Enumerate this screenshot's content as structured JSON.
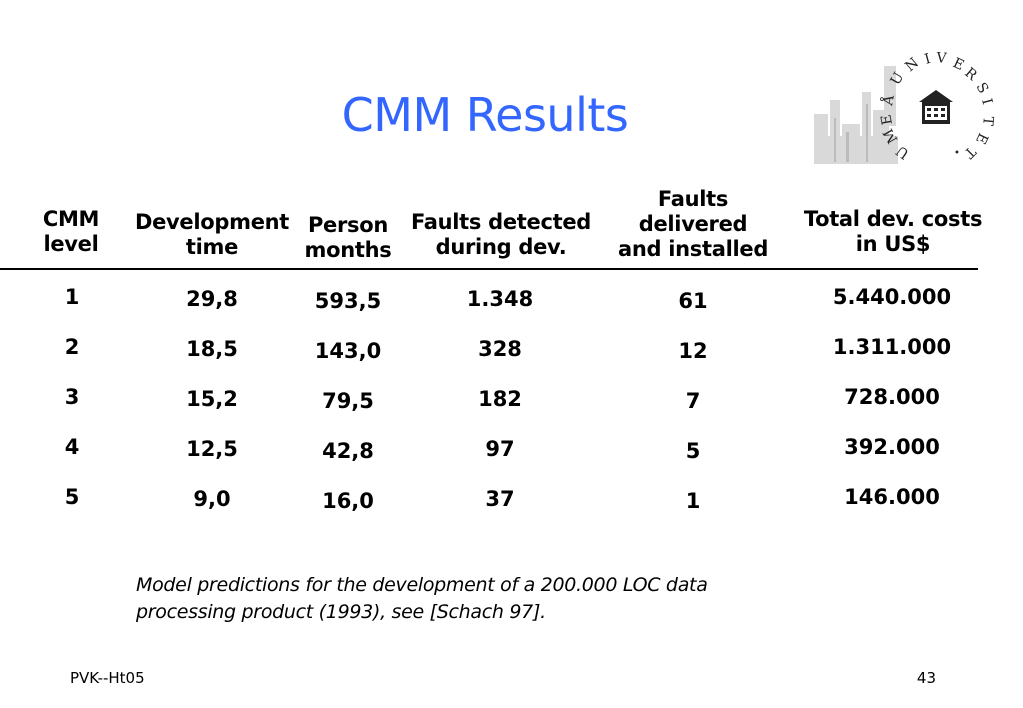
{
  "slide": {
    "title": "CMM Results"
  },
  "logo": {
    "name": "umea-universitet-logo",
    "text": "UMEÅ UNIVERSITET"
  },
  "table": {
    "headers": [
      {
        "lines": [
          "CMM",
          "level"
        ]
      },
      {
        "lines": [
          "Development",
          "time"
        ]
      },
      {
        "lines": [
          "Person",
          "months"
        ]
      },
      {
        "lines": [
          "Faults detected",
          "during dev."
        ]
      },
      {
        "lines": [
          "Faults",
          "delivered",
          "and installed"
        ]
      },
      {
        "lines": [
          "Total dev. costs",
          "in US$"
        ]
      }
    ],
    "rows": [
      [
        "1",
        "29,8",
        "593,5",
        "1.348",
        "61",
        "5.440.000"
      ],
      [
        "2",
        "18,5",
        "143,0",
        "328",
        "12",
        "1.311.000"
      ],
      [
        "3",
        "15,2",
        "79,5",
        "182",
        "7",
        "728.000"
      ],
      [
        "4",
        "12,5",
        "42,8",
        "97",
        "5",
        "392.000"
      ],
      [
        "5",
        "9,0",
        "16,0",
        "37",
        "1",
        "146.000"
      ]
    ]
  },
  "caption": {
    "line1": "Model predictions for the development of a 200.000 LOC data",
    "line2": "processing product (1993),  see [Schach 97]."
  },
  "footer": {
    "left": "PVK--Ht05",
    "page": "43"
  }
}
